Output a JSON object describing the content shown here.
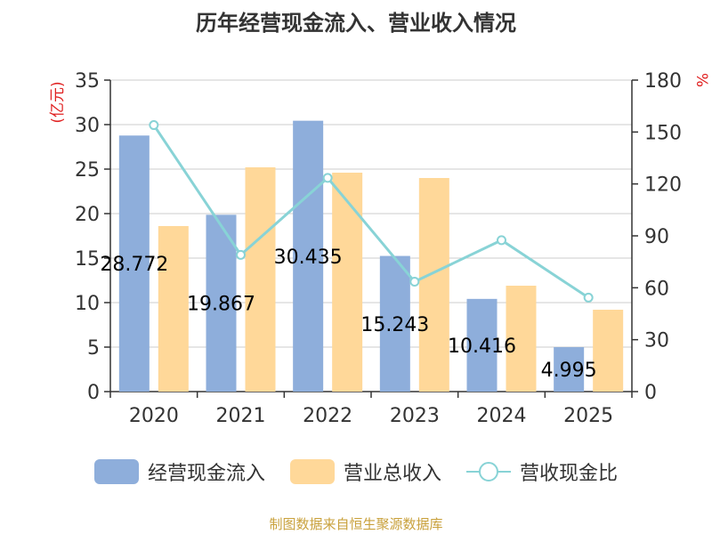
{
  "title": "历年经营现金流入、营业收入情况",
  "chart_data": {
    "type": "bar",
    "categories": [
      "2020",
      "2021",
      "2022",
      "2023",
      "2024",
      "2025"
    ],
    "series": [
      {
        "name": "经营现金流入",
        "kind": "bar",
        "axis": "left",
        "color": "#8eaedb",
        "values": [
          28.772,
          19.867,
          30.435,
          15.243,
          10.416,
          4.995
        ],
        "labels": [
          "28.772",
          "19.867",
          "30.435",
          "15.243",
          "10.416",
          "4.995"
        ]
      },
      {
        "name": "营业总收入",
        "kind": "bar",
        "axis": "left",
        "color": "#ffd899",
        "values": [
          18.6,
          25.2,
          24.6,
          24.0,
          11.9,
          9.2
        ]
      },
      {
        "name": "营收现金比",
        "kind": "line",
        "axis": "right",
        "color": "#88d3d6",
        "values": [
          154.0,
          79.0,
          123.5,
          63.5,
          87.5,
          54.3
        ]
      }
    ],
    "y_left": {
      "label": "(亿元)",
      "min": 0,
      "max": 35,
      "ticks": [
        0,
        5,
        10,
        15,
        20,
        25,
        30,
        35
      ]
    },
    "y_right": {
      "label": "%",
      "min": 0,
      "max": 180,
      "ticks": [
        0,
        30,
        60,
        90,
        120,
        150,
        180
      ]
    },
    "grid": true,
    "legend_position": "bottom"
  },
  "legend": [
    {
      "label": "经营现金流入",
      "color": "#8eaedb"
    },
    {
      "label": "营业总收入",
      "color": "#ffd899"
    },
    {
      "label": "营收现金比",
      "color": "#88d3d6"
    }
  ],
  "source": "制图数据来自恒生聚源数据库"
}
